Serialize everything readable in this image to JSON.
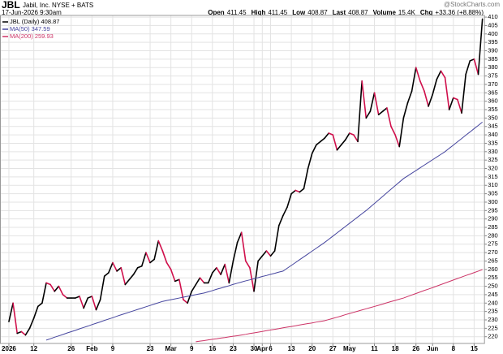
{
  "header": {
    "symbol": "JBL",
    "name": "Jabil, Inc.  NYSE + BATS",
    "date": "17-Jun-2026 9:30am",
    "watermark": "@StockCharts.com",
    "quote": [
      {
        "label": "Open",
        "value": "411.45"
      },
      {
        "label": "High",
        "value": "411.45"
      },
      {
        "label": "Low",
        "value": "408.87"
      },
      {
        "label": "Last",
        "value": "408.87"
      },
      {
        "label": "Volume",
        "value": "15.4K"
      },
      {
        "label": "Chg",
        "value": "+33.36 (+8.88%)"
      }
    ]
  },
  "chart_data": {
    "type": "line",
    "categories": [
      "2026",
      null,
      null,
      null,
      null,
      null,
      "12",
      null,
      null,
      null,
      null,
      null,
      null,
      null,
      null,
      "26",
      null,
      null,
      null,
      null,
      "Feb",
      null,
      null,
      null,
      null,
      "9",
      null,
      null,
      null,
      null,
      null,
      null,
      null,
      null,
      "23",
      null,
      null,
      null,
      null,
      "Mar",
      null,
      null,
      null,
      null,
      "9",
      null,
      null,
      null,
      null,
      "16",
      null,
      null,
      null,
      null,
      "23",
      null,
      null,
      null,
      null,
      "30",
      null,
      "Apr",
      null,
      "6",
      null,
      null,
      null,
      null,
      "13",
      null,
      null,
      null,
      null,
      "20",
      null,
      null,
      null,
      null,
      "27",
      null,
      null,
      null,
      "May",
      null,
      null,
      null,
      null,
      null,
      "11",
      null,
      null,
      null,
      null,
      "18",
      null,
      null,
      null,
      null,
      "26",
      null,
      null,
      null,
      "Jun",
      null,
      null,
      null,
      null,
      "8",
      null,
      null,
      null,
      null,
      "15",
      null,
      null
    ],
    "series": [
      {
        "name": "JBL (Daily) 408.87",
        "color": "#000000",
        "down_color": "#d0104c",
        "values": [
          229,
          240,
          222,
          223,
          221,
          225,
          231,
          238,
          240,
          252,
          251,
          247,
          250,
          245,
          243,
          243,
          243,
          244,
          237,
          243,
          244,
          236,
          242,
          256,
          258,
          264,
          259,
          261,
          251,
          254,
          257,
          261,
          262,
          270,
          264,
          266,
          277,
          271,
          264,
          260,
          253,
          254,
          242,
          240,
          247,
          251,
          255,
          252,
          252,
          258,
          261,
          257,
          263,
          252,
          265,
          276,
          282,
          265,
          261,
          247,
          265,
          268,
          271,
          268,
          271,
          286,
          292,
          297,
          305,
          307,
          306,
          308,
          320,
          329,
          334,
          336,
          338,
          341,
          340,
          331,
          334,
          337,
          341,
          340,
          336,
          372,
          350,
          354,
          365,
          352,
          354,
          356,
          345,
          340,
          333,
          350,
          359,
          366,
          380,
          372,
          366,
          357,
          364,
          373,
          378,
          374,
          355,
          362,
          361,
          353,
          376,
          384,
          385,
          376,
          408.87
        ]
      },
      {
        "name": "MA(50) 347.59",
        "color": "#45459e",
        "values": [
          null,
          null,
          null,
          null,
          null,
          null,
          null,
          null,
          null,
          218.0,
          218.8,
          219.7,
          220.5,
          221.3,
          222.2,
          223.0,
          223.8,
          224.7,
          225.5,
          226.3,
          227.2,
          228.0,
          228.8,
          229.7,
          230.5,
          231.3,
          232.2,
          233.0,
          233.8,
          234.6,
          235.4,
          236.2,
          237.0,
          237.8,
          238.6,
          239.4,
          240.2,
          241.0,
          241.5,
          242.0,
          242.5,
          243.0,
          243.5,
          244.0,
          244.5,
          245.0,
          245.5,
          246.0,
          246.7,
          247.4,
          248.2,
          248.9,
          249.6,
          250.3,
          251.1,
          251.8,
          252.5,
          253.2,
          253.8,
          254.5,
          255.1,
          255.8,
          256.4,
          257.1,
          257.7,
          258.4,
          259.0,
          260.7,
          262.4,
          264.1,
          265.8,
          267.5,
          269.2,
          270.9,
          272.6,
          274.3,
          276.0,
          277.9,
          279.8,
          281.7,
          283.6,
          285.5,
          287.4,
          289.3,
          291.2,
          293.1,
          295.0,
          297.1,
          299.2,
          301.3,
          303.4,
          305.6,
          307.7,
          309.8,
          311.9,
          314.0,
          315.6,
          317.2,
          318.8,
          320.4,
          322.0,
          323.6,
          325.2,
          326.8,
          328.4,
          330.0,
          332.0,
          333.9,
          335.9,
          337.8,
          339.8,
          341.7,
          343.7,
          345.6,
          347.59
        ]
      },
      {
        "name": "MA(200) 259.93",
        "color": "#cc3366",
        "values": [
          null,
          null,
          null,
          null,
          null,
          null,
          null,
          null,
          null,
          null,
          null,
          null,
          null,
          null,
          null,
          null,
          null,
          null,
          null,
          null,
          null,
          null,
          null,
          null,
          null,
          null,
          null,
          null,
          null,
          null,
          null,
          null,
          null,
          null,
          null,
          null,
          null,
          null,
          null,
          null,
          null,
          null,
          null,
          null,
          null,
          217.0,
          217.4,
          217.7,
          218.1,
          218.5,
          218.8,
          219.2,
          219.5,
          219.9,
          220.3,
          220.6,
          221.0,
          221.4,
          221.9,
          222.3,
          222.7,
          223.1,
          223.6,
          224.0,
          224.4,
          224.8,
          225.3,
          225.7,
          226.1,
          226.5,
          227.0,
          227.4,
          227.8,
          228.2,
          228.7,
          229.1,
          229.5,
          230.2,
          230.9,
          231.6,
          232.3,
          233.1,
          233.8,
          234.5,
          235.2,
          235.9,
          236.6,
          237.3,
          238.0,
          238.7,
          239.4,
          240.2,
          240.9,
          241.6,
          242.3,
          243.0,
          243.9,
          244.8,
          245.7,
          246.6,
          247.5,
          248.3,
          249.2,
          250.1,
          251.0,
          251.9,
          252.8,
          253.7,
          254.6,
          255.5,
          256.4,
          257.2,
          258.1,
          259.0,
          259.93
        ]
      }
    ],
    "ylim": [
      216,
      411
    ],
    "yticks": [
      220,
      225,
      230,
      235,
      240,
      245,
      250,
      255,
      260,
      265,
      270,
      275,
      280,
      285,
      290,
      295,
      300,
      305,
      310,
      315,
      320,
      325,
      330,
      335,
      340,
      345,
      350,
      355,
      360,
      365,
      370,
      375,
      380,
      385,
      390,
      395,
      400,
      405,
      410
    ],
    "grid": true
  }
}
